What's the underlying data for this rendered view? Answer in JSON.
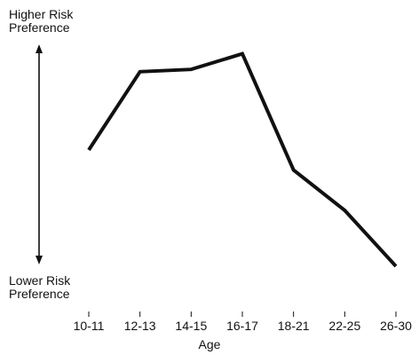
{
  "chart_data": {
    "type": "line",
    "title": "",
    "xlabel": "Age",
    "ylabel_top": "Higher Risk\nPreference",
    "ylabel_bottom": "Lower Risk\nPreference",
    "categories": [
      "10-11",
      "12-13",
      "14-15",
      "16-17",
      "18-21",
      "22-25",
      "26-30"
    ],
    "series": [
      {
        "values": [
          0.52,
          0.87,
          0.88,
          0.95,
          0.43,
          0.25,
          0.0
        ]
      }
    ],
    "ylim": [
      0,
      1
    ],
    "grid": false,
    "legend": "none",
    "colors": {
      "line": "#111111",
      "text": "#111111",
      "background": "#ffffff"
    }
  }
}
